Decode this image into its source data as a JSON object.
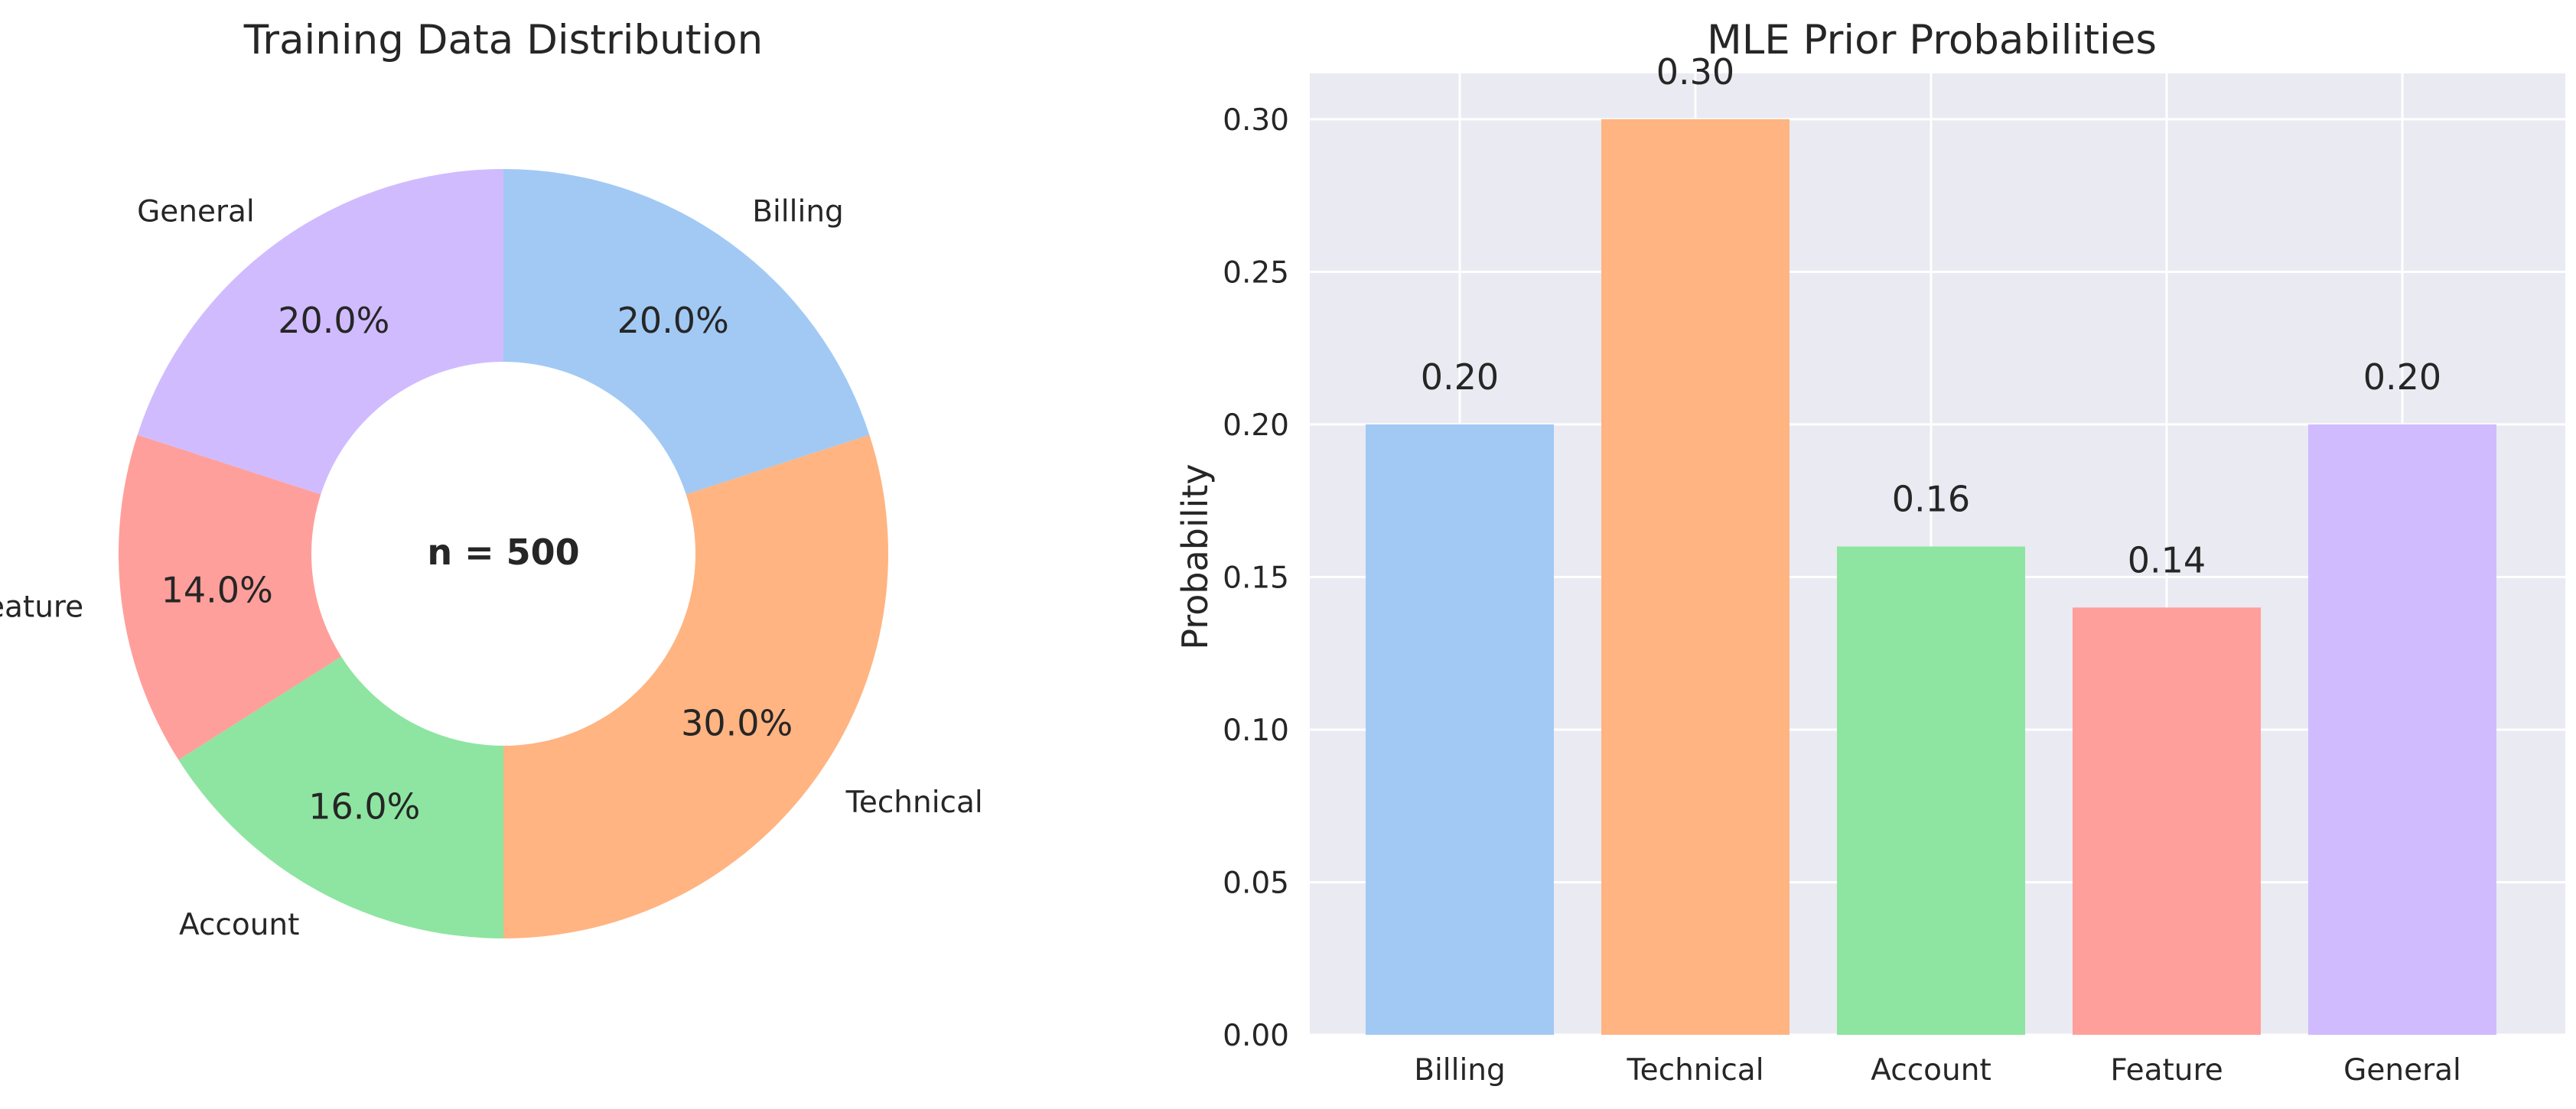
{
  "colors": {
    "billing": "#a1c9f4",
    "technical": "#ffb482",
    "account": "#8de5a1",
    "feature": "#ff9f9b",
    "general": "#d0bbff",
    "axes_bg": "#eaeaf2",
    "grid": "#ffffff",
    "text": "#262626"
  },
  "chart_data": [
    {
      "type": "pie",
      "donut": true,
      "title": "Training Data Distribution",
      "center_text": "n = 500",
      "start_angle_deg": 90,
      "direction": "clockwise",
      "slices": [
        {
          "label": "Billing",
          "value": 20.0,
          "pct_label": "20.0%",
          "color": "#a1c9f4"
        },
        {
          "label": "Technical",
          "value": 30.0,
          "pct_label": "30.0%",
          "color": "#ffb482"
        },
        {
          "label": "Account",
          "value": 16.0,
          "pct_label": "16.0%",
          "color": "#8de5a1"
        },
        {
          "label": "Feature",
          "value": 14.0,
          "pct_label": "14.0%",
          "color": "#ff9f9b"
        },
        {
          "label": "General",
          "value": 20.0,
          "pct_label": "20.0%",
          "color": "#d0bbff"
        }
      ]
    },
    {
      "type": "bar",
      "title": "MLE Prior Probabilities",
      "xlabel": "",
      "ylabel": "Probability",
      "categories": [
        "Billing",
        "Technical",
        "Account",
        "Feature",
        "General"
      ],
      "values": [
        0.2,
        0.3,
        0.16,
        0.14,
        0.2
      ],
      "value_labels": [
        "0.20",
        "0.30",
        "0.16",
        "0.14",
        "0.20"
      ],
      "colors": [
        "#a1c9f4",
        "#ffb482",
        "#8de5a1",
        "#ff9f9b",
        "#d0bbff"
      ],
      "ylim": [
        0,
        0.315
      ],
      "yticks": [
        0.0,
        0.05,
        0.1,
        0.15,
        0.2,
        0.25,
        0.3
      ],
      "ytick_labels": [
        "0.00",
        "0.05",
        "0.10",
        "0.15",
        "0.20",
        "0.25",
        "0.30"
      ],
      "grid": true
    }
  ]
}
